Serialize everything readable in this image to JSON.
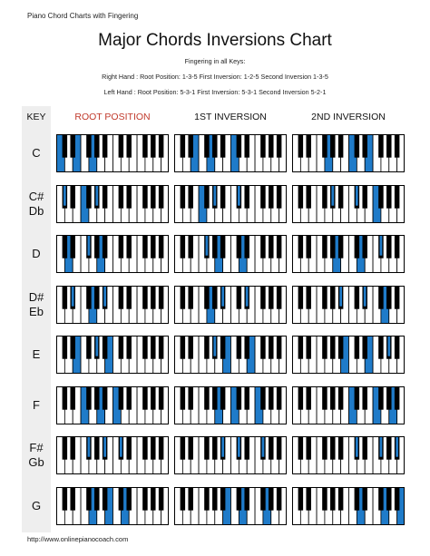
{
  "page": {
    "header_small": "Piano Chord Charts with Fingering",
    "title": "Major Chords Inversions Chart",
    "fingering_heading": "Fingering in all Keys:",
    "right_hand": "Right Hand : Root Position: 1-3-5 First Inversion: 1-2-5 Second Inversion 1-3-5",
    "left_hand": "Left Hand : Root Position: 5-3-1 First Inversion: 5-3-1 Second Inversion 5-2-1",
    "footer_url": "http://www.onlinepianocoach.com"
  },
  "columns": {
    "key": "KEY",
    "root": "ROOT POSITION",
    "first": "1ST INVERSION",
    "second": "2ND INVERSION"
  },
  "colors": {
    "highlight": "#1f7bc9",
    "root_header": "#c0392b",
    "key_column_bg": "#eeeeee"
  },
  "chords": [
    {
      "label": [
        "C"
      ],
      "root": [
        0,
        4,
        7
      ],
      "first": [
        4,
        7,
        12
      ],
      "second": [
        7,
        12,
        16
      ]
    },
    {
      "label": [
        "C#",
        "Db"
      ],
      "root": [
        1,
        5,
        8
      ],
      "first": [
        5,
        8,
        13
      ],
      "second": [
        8,
        13,
        17
      ]
    },
    {
      "label": [
        "D"
      ],
      "root": [
        2,
        6,
        9
      ],
      "first": [
        6,
        9,
        14
      ],
      "second": [
        9,
        14,
        18
      ]
    },
    {
      "label": [
        "D#",
        "Eb"
      ],
      "root": [
        3,
        7,
        10
      ],
      "first": [
        7,
        10,
        15
      ],
      "second": [
        10,
        15,
        19
      ]
    },
    {
      "label": [
        "E"
      ],
      "root": [
        4,
        8,
        11
      ],
      "first": [
        8,
        11,
        16
      ],
      "second": [
        11,
        16,
        20
      ]
    },
    {
      "label": [
        "F"
      ],
      "root": [
        5,
        9,
        12
      ],
      "first": [
        9,
        12,
        17
      ],
      "second": [
        12,
        17,
        21
      ]
    },
    {
      "label": [
        "F#",
        "Gb"
      ],
      "root": [
        6,
        10,
        13
      ],
      "first": [
        10,
        13,
        18
      ],
      "second": [
        13,
        18,
        22
      ]
    },
    {
      "label": [
        "G"
      ],
      "root": [
        7,
        11,
        14
      ],
      "first": [
        11,
        14,
        19
      ],
      "second": [
        14,
        19,
        23
      ]
    }
  ]
}
